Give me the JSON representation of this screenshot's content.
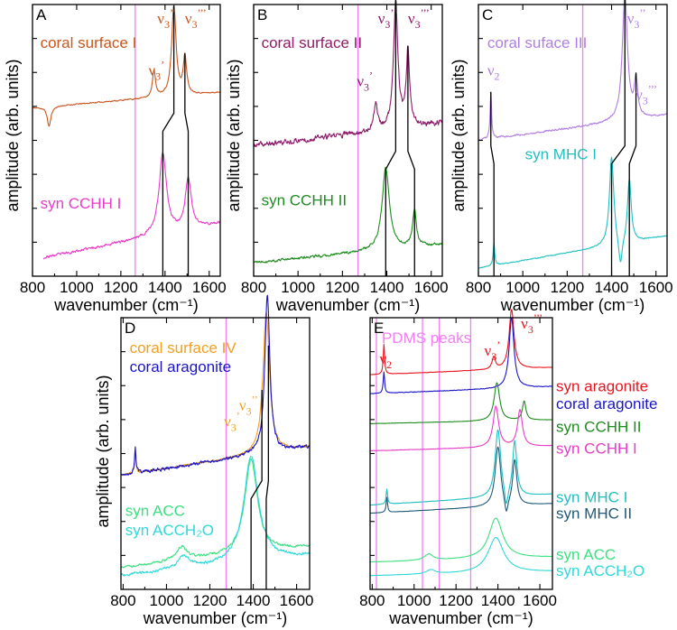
{
  "colors": {
    "coral_surface_I": "#c8561e",
    "coral_surface_II": "#8e1a6a",
    "coral_surface_III": "#b07ee0",
    "coral_surface_IV": "#f2a01e",
    "coral_aragonite": "#1a14c8",
    "syn_aragonite": "#e8141e",
    "syn_CCHH_I": "#e83cc8",
    "syn_CCHH_II": "#1e8c1e",
    "syn_MHC_I": "#20c0c0",
    "syn_MHC_II": "#1e5a78",
    "syn_ACC": "#3ce080",
    "syn_ACCH2O": "#30d8d8",
    "pdms_line": "#f080f0",
    "guide_line": "#000000"
  },
  "chart_data": [
    {
      "panel": "A",
      "type": "line",
      "xlabel": "wavenumber (cm⁻¹)",
      "ylabel": "amplitude (arb. units)",
      "xlim": [
        800,
        1650
      ],
      "xticks": [
        800,
        1000,
        1200,
        1400,
        1600
      ],
      "pdms_line_x": 1265,
      "series": [
        {
          "name": "coral surface I",
          "color": "coral_surface_I",
          "offset": 0.62,
          "scale": 0.33,
          "noise": 0.012,
          "seed": 11,
          "base": [
            0.0,
            0.17
          ],
          "peaks": [
            [
              1350,
              0.3,
              8
            ],
            [
              1440,
              1.0,
              12
            ],
            [
              1490,
              0.42,
              9
            ]
          ],
          "dip": [
            875,
            0.22
          ]
        },
        {
          "name": "syn CCHH I",
          "color": "syn_CCHH_I",
          "offset": 0.06,
          "scale": 0.3,
          "noise": 0.03,
          "seed": 23,
          "base": [
            0.0,
            0.45
          ],
          "peaks": [
            [
              1390,
              1.0,
              20
            ],
            [
              1505,
              0.62,
              16
            ]
          ],
          "start": 850
        }
      ],
      "labels": [
        {
          "text": "coral surface I",
          "color": "coral_surface_I",
          "x": 835,
          "y": 0.84
        },
        {
          "text": "syn CCHH I",
          "color": "syn_CCHH_I",
          "x": 835,
          "y": 0.25
        }
      ],
      "nu_labels": [
        {
          "main": "ν",
          "sub": "3",
          "sup": "’",
          "color": "coral_surface_I",
          "x": 1325,
          "y": 0.74
        },
        {
          "main": "ν",
          "sub": "3",
          "sup": "’’",
          "color": "coral_surface_I",
          "x": 1365,
          "y": 0.93
        },
        {
          "main": "ν",
          "sub": "3",
          "sup": "’’’",
          "color": "coral_surface_I",
          "x": 1490,
          "y": 0.93
        }
      ],
      "guides": [
        [
          1440,
          1390
        ],
        [
          1490,
          1505
        ]
      ]
    },
    {
      "panel": "B",
      "type": "line",
      "xlabel": "wavenumber (cm⁻¹)",
      "ylabel": "amplitude (arb. units)",
      "xlim": [
        800,
        1650
      ],
      "xticks": [
        800,
        1000,
        1200,
        1400,
        1600
      ],
      "pdms_line_x": 1270,
      "series": [
        {
          "name": "coral surface II",
          "color": "coral_surface_II",
          "offset": 0.48,
          "scale": 0.46,
          "noise": 0.04,
          "seed": 37,
          "base": [
            0.0,
            0.18
          ],
          "peaks": [
            [
              1350,
              0.22,
              10
            ],
            [
              1440,
              1.0,
              12
            ],
            [
              1495,
              0.6,
              9
            ]
          ]
        },
        {
          "name": "syn CCHH II",
          "color": "syn_CCHH_II",
          "offset": 0.05,
          "scale": 0.3,
          "noise": 0.03,
          "seed": 41,
          "base": [
            0.0,
            0.22
          ],
          "peaks": [
            [
              1395,
              1.0,
              20
            ],
            [
              1525,
              0.45,
              10
            ]
          ]
        }
      ],
      "labels": [
        {
          "text": "coral surface II",
          "color": "coral_surface_II",
          "x": 835,
          "y": 0.84
        },
        {
          "text": "syn CCHH II",
          "color": "syn_CCHH_II",
          "x": 835,
          "y": 0.26
        }
      ],
      "nu_labels": [
        {
          "main": "ν",
          "sub": "3",
          "sup": "’",
          "color": "coral_surface_II",
          "x": 1265,
          "y": 0.7
        },
        {
          "main": "ν",
          "sub": "3",
          "sup": "’’",
          "color": "coral_surface_II",
          "x": 1360,
          "y": 0.93
        },
        {
          "main": "ν",
          "sub": "3",
          "sup": "’’’",
          "color": "coral_surface_II",
          "x": 1495,
          "y": 0.93
        }
      ],
      "guides": [
        [
          1440,
          1395
        ],
        [
          1495,
          1525
        ]
      ]
    },
    {
      "panel": "C",
      "type": "line",
      "xlabel": "wavenumber (cm⁻¹)",
      "ylabel": "amplitude (arb. units)",
      "xlim": [
        800,
        1650
      ],
      "xticks": [
        800,
        1000,
        1200,
        1400,
        1600
      ],
      "pdms_line_x": 1270,
      "series": [
        {
          "name": "coral suface III",
          "color": "coral_surface_III",
          "offset": 0.5,
          "scale": 0.46,
          "noise": 0.013,
          "seed": 53,
          "base": [
            0.0,
            0.2
          ],
          "peaks": [
            [
              856,
              0.38,
              4
            ],
            [
              1460,
              1.0,
              14
            ],
            [
              1510,
              0.3,
              9
            ]
          ]
        },
        {
          "name": "syn MHC I",
          "color": "syn_MHC_I",
          "offset": 0.03,
          "scale": 0.42,
          "noise": 0.008,
          "seed": 59,
          "base": [
            0.0,
            0.28
          ],
          "peaks": [
            [
              870,
              0.2,
              4
            ],
            [
              1400,
              0.78,
              12
            ],
            [
              1480,
              0.55,
              10
            ]
          ],
          "dip": [
            1440,
            0.25
          ]
        }
      ],
      "labels": [
        {
          "text": "coral suface III",
          "color": "coral_surface_III",
          "x": 840,
          "y": 0.84
        },
        {
          "text": "syn MHC I",
          "color": "syn_MHC_I",
          "x": 1010,
          "y": 0.43
        }
      ],
      "nu_labels": [
        {
          "main": "ν",
          "sub": "2",
          "sup": "",
          "color": "coral_surface_III",
          "x": 840,
          "y": 0.74
        },
        {
          "main": "ν",
          "sub": "3",
          "sup": "’’",
          "color": "coral_surface_III",
          "x": 1470,
          "y": 0.93
        },
        {
          "main": "ν",
          "sub": "3",
          "sup": "’’’",
          "color": "coral_surface_III",
          "x": 1508,
          "y": 0.65
        }
      ],
      "guides": [
        [
          856,
          870
        ],
        [
          1460,
          1400
        ],
        [
          1510,
          1480
        ]
      ]
    },
    {
      "panel": "D",
      "type": "line",
      "xlabel": "wavenumber (cm⁻¹)",
      "ylabel": "amplitude (arb. units)",
      "xlim": [
        790,
        1660
      ],
      "xticks": [
        800,
        1000,
        1200,
        1400,
        1600
      ],
      "pdms_line_x": 1275,
      "series": [
        {
          "name": "coral surface IV",
          "color": "coral_surface_IV",
          "offset": 0.42,
          "scale": 0.52,
          "noise": 0.012,
          "seed": 61,
          "base": [
            0.0,
            0.2
          ],
          "peaks": [
            [
              856,
              0.14,
              4
            ],
            [
              1460,
              1.0,
              18
            ]
          ]
        },
        {
          "name": "coral aragonite",
          "color": "coral_aragonite",
          "offset": 0.42,
          "scale": 0.58,
          "noise": 0.02,
          "seed": 67,
          "base": [
            0.0,
            0.18
          ],
          "peaks": [
            [
              856,
              0.16,
              4
            ],
            [
              1465,
              1.0,
              14
            ]
          ]
        },
        {
          "name": "syn ACC",
          "color": "syn_ACC",
          "offset": 0.08,
          "scale": 0.42,
          "noise": 0.02,
          "seed": 71,
          "base": [
            0.0,
            0.18
          ],
          "peaks": [
            [
              1070,
              0.12,
              30
            ],
            [
              1390,
              0.82,
              35
            ]
          ]
        },
        {
          "name": "syn ACCH₂O",
          "color": "syn_ACCH2O",
          "offset": 0.05,
          "scale": 0.46,
          "noise": 0.02,
          "seed": 73,
          "base": [
            0.0,
            0.16
          ],
          "peaks": [
            [
              1080,
              0.1,
              30
            ],
            [
              1390,
              0.85,
              40
            ]
          ]
        }
      ],
      "labels": [
        {
          "text": "coral surface IV",
          "color": "coral_surface_IV",
          "x": 830,
          "y": 0.87
        },
        {
          "text": "coral aragonite",
          "color": "coral_aragonite",
          "x": 830,
          "y": 0.8
        },
        {
          "text": "syn ACC",
          "color": "syn_ACC",
          "x": 810,
          "y": 0.27
        },
        {
          "text": "syn ACCH₂O",
          "color": "syn_ACCH2O",
          "x": 810,
          "y": 0.2
        }
      ],
      "nu_labels": [
        {
          "main": "ν",
          "sub": "3",
          "sup": "’",
          "color": "coral_surface_IV",
          "x": 1265,
          "y": 0.6
        },
        {
          "main": "ν",
          "sub": "3",
          "sup": "’’",
          "color": "coral_surface_IV",
          "x": 1335,
          "y": 0.66
        }
      ],
      "guides": [
        [
          1440,
          1390
        ],
        [
          1470,
          1460
        ]
      ]
    },
    {
      "panel": "E",
      "type": "line",
      "xlabel": "wavenumber (cm⁻¹)",
      "ylabel": "",
      "xlim": [
        790,
        1660
      ],
      "xticks": [
        800,
        1000,
        1200,
        1400,
        1600
      ],
      "pdms_lines_x": [
        820,
        1040,
        1120,
        1270
      ],
      "pdms_label": "PDMS peaks",
      "series": [
        {
          "name": "syn aragonite",
          "color": "syn_aragonite",
          "offset": 0.79,
          "scale": 0.22,
          "noise": 0.006,
          "seed": 81,
          "base": [
            0.0,
            0.12
          ],
          "peaks": [
            [
              856,
              0.5,
              4
            ],
            [
              1465,
              1.0,
              14
            ],
            [
              1380,
              0.2,
              10
            ]
          ]
        },
        {
          "name": "coral aragonite",
          "color": "coral_aragonite",
          "offset": 0.72,
          "scale": 0.26,
          "noise": 0.008,
          "seed": 83,
          "base": [
            0.0,
            0.1
          ],
          "peaks": [
            [
              856,
              0.3,
              4
            ],
            [
              1465,
              1.0,
              14
            ]
          ]
        },
        {
          "name": "syn CCHH II",
          "color": "syn_CCHH_II",
          "offset": 0.61,
          "scale": 0.14,
          "noise": 0.008,
          "seed": 87,
          "base": [
            0.0,
            0.1
          ],
          "peaks": [
            [
              1395,
              1.0,
              16
            ],
            [
              1525,
              0.5,
              10
            ]
          ]
        },
        {
          "name": "syn CCHH I",
          "color": "syn_CCHH_I",
          "offset": 0.51,
          "scale": 0.15,
          "noise": 0.008,
          "seed": 89,
          "base": [
            0.0,
            0.12
          ],
          "peaks": [
            [
              1390,
              1.0,
              16
            ],
            [
              1505,
              0.9,
              14
            ]
          ]
        },
        {
          "name": "syn MHC I",
          "color": "syn_MHC_I",
          "offset": 0.31,
          "scale": 0.25,
          "noise": 0.004,
          "seed": 91,
          "base": [
            0.0,
            0.16
          ],
          "peaks": [
            [
              870,
              0.22,
              4
            ],
            [
              1400,
              1.0,
              16
            ],
            [
              1480,
              0.8,
              12
            ]
          ],
          "dip": [
            1440,
            0.3
          ]
        },
        {
          "name": "syn MHC II",
          "color": "syn_MHC_II",
          "offset": 0.28,
          "scale": 0.22,
          "noise": 0.004,
          "seed": 93,
          "base": [
            0.0,
            0.16
          ],
          "peaks": [
            [
              870,
              0.25,
              4
            ],
            [
              1400,
              1.0,
              16
            ],
            [
              1480,
              0.75,
              12
            ]
          ],
          "dip": [
            1440,
            0.28
          ]
        },
        {
          "name": "syn ACC",
          "color": "syn_ACC",
          "offset": 0.1,
          "scale": 0.15,
          "noise": 0.006,
          "seed": 95,
          "base": [
            0.0,
            0.12
          ],
          "peaks": [
            [
              1070,
              0.15,
              25
            ],
            [
              1390,
              1.0,
              40
            ]
          ]
        },
        {
          "name": "syn ACCH₂O",
          "color": "syn_ACCH2O",
          "offset": 0.05,
          "scale": 0.13,
          "noise": 0.006,
          "seed": 97,
          "base": [
            0.0,
            0.12
          ],
          "peaks": [
            [
              1080,
              0.12,
              25
            ],
            [
              1390,
              1.0,
              45
            ]
          ]
        }
      ],
      "labels": [
        {
          "text": "syn aragonite",
          "color": "syn_aragonite",
          "y": 0.73
        },
        {
          "text": "coral aragonite",
          "color": "coral_aragonite",
          "y": 0.665
        },
        {
          "text": "syn CCHH II",
          "color": "syn_CCHH_II",
          "y": 0.58
        },
        {
          "text": "syn CCHH I",
          "color": "syn_CCHH_I",
          "y": 0.5
        },
        {
          "text": "syn MHC I",
          "color": "syn_MHC_I",
          "y": 0.32
        },
        {
          "text": "syn MHC II",
          "color": "syn_MHC_II",
          "y": 0.26
        },
        {
          "text": "syn ACC",
          "color": "syn_ACC",
          "y": 0.11
        },
        {
          "text": "syn ACCH₂O",
          "color": "syn_ACCH2O",
          "y": 0.05
        }
      ],
      "nu_labels": [
        {
          "main": "ν",
          "sub": "2",
          "sup": "",
          "color": "syn_aragonite",
          "x": 835,
          "y": 0.83
        },
        {
          "main": "ν",
          "sub": "3",
          "sup": "’",
          "color": "syn_aragonite",
          "x": 1335,
          "y": 0.86
        },
        {
          "main": "ν",
          "sub": "3",
          "sup": "’’’",
          "color": "syn_aragonite",
          "x": 1510,
          "y": 0.96
        }
      ]
    }
  ]
}
